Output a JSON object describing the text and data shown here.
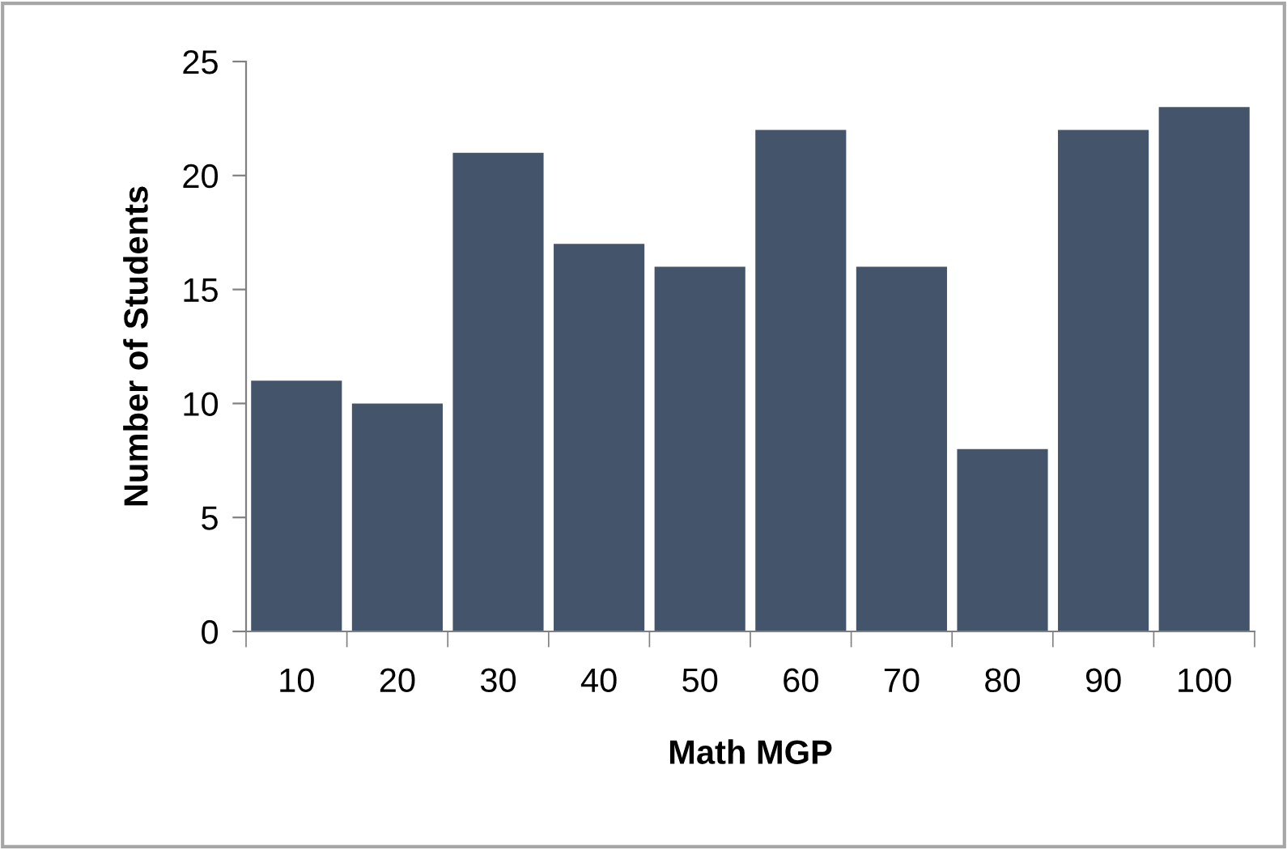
{
  "chart_data": {
    "type": "bar",
    "xlabel": "Math MGP",
    "ylabel": "Number of Students",
    "categories": [
      "10",
      "20",
      "30",
      "40",
      "50",
      "60",
      "70",
      "80",
      "90",
      "100"
    ],
    "values": [
      11,
      10,
      21,
      17,
      16,
      22,
      16,
      8,
      22,
      23
    ],
    "color": "#44546a",
    "ylim": [
      0,
      25
    ],
    "yticks": [
      0,
      5,
      10,
      15,
      20,
      25
    ],
    "grid": false,
    "legend": false
  }
}
